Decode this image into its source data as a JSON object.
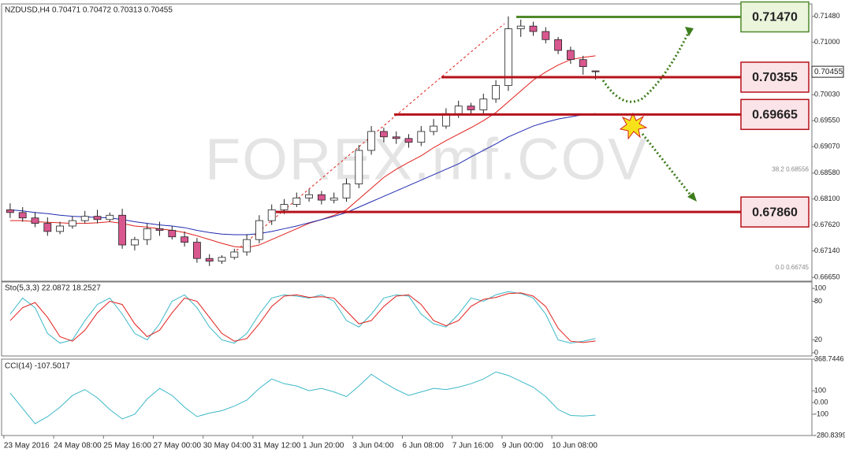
{
  "chart_data": [
    {
      "type": "candlestick",
      "title": "NZDUSD,H4 0.70471 0.70472 0.70313 0.70455",
      "watermark": "FOREX.mf.COV",
      "categories": [
        "23 May 2016",
        null,
        null,
        null,
        "24 May 08:00",
        null,
        null,
        null,
        "25 May 16:00",
        null,
        null,
        null,
        "27 May 00:00",
        null,
        null,
        null,
        "30 May 04:00",
        null,
        null,
        null,
        "31 May 12:00",
        null,
        null,
        null,
        "1 Jun 20:00",
        null,
        null,
        null,
        "3 Jun 04:00",
        null,
        null,
        null,
        "6 Jun 08:00",
        null,
        null,
        null,
        "7 Jun 16:00",
        null,
        null,
        null,
        "9 Jun 00:00",
        null,
        null,
        null,
        "10 Jun 08:00",
        null,
        null,
        null
      ],
      "open": [
        0.679,
        0.6785,
        0.6775,
        0.6765,
        0.675,
        0.676,
        0.677,
        0.6778,
        0.6772,
        0.678,
        0.6725,
        0.6735,
        0.6755,
        0.6752,
        0.674,
        0.673,
        0.67,
        0.6695,
        0.6702,
        0.6712,
        0.6735,
        0.677,
        0.679,
        0.68,
        0.6812,
        0.6818,
        0.6808,
        0.6812,
        0.6838,
        0.69,
        0.6935,
        0.6925,
        0.6922,
        0.6915,
        0.6935,
        0.6945,
        0.6968,
        0.6982,
        0.6975,
        0.6995,
        0.702,
        0.7125,
        0.713,
        0.712,
        0.7105,
        0.7085,
        0.7068,
        0.70471
      ],
      "high": [
        0.6802,
        0.6795,
        0.6786,
        0.6776,
        0.6768,
        0.6778,
        0.6788,
        0.679,
        0.6785,
        0.6792,
        0.674,
        0.6765,
        0.6768,
        0.676,
        0.675,
        0.6738,
        0.6708,
        0.6706,
        0.6718,
        0.6745,
        0.678,
        0.68,
        0.681,
        0.6822,
        0.6828,
        0.6825,
        0.6822,
        0.6848,
        0.691,
        0.6945,
        0.6942,
        0.6935,
        0.693,
        0.6945,
        0.6958,
        0.6978,
        0.6992,
        0.6988,
        0.7005,
        0.703,
        0.7148,
        0.7142,
        0.7138,
        0.7128,
        0.711,
        0.7092,
        0.7075,
        0.70472
      ],
      "low": [
        0.6775,
        0.6768,
        0.6758,
        0.6742,
        0.6745,
        0.6755,
        0.6765,
        0.6765,
        0.6768,
        0.6718,
        0.6715,
        0.6725,
        0.6742,
        0.6735,
        0.6722,
        0.6692,
        0.6686,
        0.669,
        0.6698,
        0.6705,
        0.6728,
        0.6762,
        0.6782,
        0.6795,
        0.6805,
        0.68,
        0.6802,
        0.6805,
        0.683,
        0.6892,
        0.6915,
        0.6912,
        0.6905,
        0.6908,
        0.6928,
        0.694,
        0.696,
        0.6968,
        0.6968,
        0.6988,
        0.701,
        0.711,
        0.7112,
        0.7098,
        0.7078,
        0.706,
        0.704,
        0.70313
      ],
      "close": [
        0.6785,
        0.6775,
        0.6765,
        0.675,
        0.676,
        0.677,
        0.6778,
        0.6772,
        0.678,
        0.6725,
        0.6735,
        0.6755,
        0.6752,
        0.674,
        0.673,
        0.67,
        0.6695,
        0.6702,
        0.6712,
        0.6735,
        0.677,
        0.679,
        0.68,
        0.6812,
        0.6818,
        0.6808,
        0.6812,
        0.6838,
        0.69,
        0.6935,
        0.6925,
        0.6922,
        0.6915,
        0.6935,
        0.6945,
        0.6968,
        0.6982,
        0.6975,
        0.6995,
        0.702,
        0.7125,
        0.713,
        0.712,
        0.7105,
        0.7085,
        0.7068,
        0.7055,
        0.70455
      ],
      "up_color": "#ffffff",
      "down_color": "#d9578f",
      "overlays": [
        {
          "color": "#e0201b",
          "values": [
            0.677,
            0.677,
            0.6768,
            0.6767,
            0.6766,
            0.6765,
            0.6765,
            0.6766,
            0.6768,
            0.6765,
            0.676,
            0.6758,
            0.6755,
            0.6752,
            0.6748,
            0.6742,
            0.6735,
            0.6728,
            0.6722,
            0.672,
            0.6725,
            0.6735,
            0.6745,
            0.6755,
            0.6765,
            0.6772,
            0.678,
            0.679,
            0.681,
            0.683,
            0.685,
            0.6865,
            0.6878,
            0.689,
            0.6905,
            0.6918,
            0.693,
            0.6942,
            0.6955,
            0.697,
            0.699,
            0.701,
            0.703,
            0.7045,
            0.7058,
            0.7068,
            0.7072,
            0.7075
          ]
        },
        {
          "color": "#1f2bb0",
          "values": [
            0.679,
            0.6788,
            0.6785,
            0.6783,
            0.678,
            0.6778,
            0.6777,
            0.6776,
            0.6775,
            0.6772,
            0.6768,
            0.6765,
            0.6762,
            0.676,
            0.6757,
            0.6752,
            0.6748,
            0.6745,
            0.6744,
            0.6744,
            0.6746,
            0.675,
            0.6755,
            0.676,
            0.6766,
            0.6772,
            0.6778,
            0.6785,
            0.6795,
            0.6805,
            0.6815,
            0.6825,
            0.6835,
            0.6845,
            0.6855,
            0.6865,
            0.6875,
            0.6888,
            0.69,
            0.6912,
            0.6925,
            0.6935,
            0.6945,
            0.6952,
            0.6958,
            0.6962,
            0.6966,
            0.6968
          ]
        }
      ],
      "ylim": [
        0.6658,
        0.7171
      ],
      "yticks": [
        {
          "value": 0.6665,
          "label": "0.66650"
        },
        {
          "value": 0.6714,
          "label": "0.67140"
        },
        {
          "value": 0.6762,
          "label": "0.67620"
        },
        {
          "value": 0.681,
          "label": "0.68100"
        },
        {
          "value": 0.6858,
          "label": "0.68580"
        },
        {
          "value": 0.6907,
          "label": "0.69070"
        },
        {
          "value": 0.6955,
          "label": "0.69550"
        },
        {
          "value": 0.7003,
          "label": "0.70030"
        },
        {
          "value": 0.71,
          "label": "0.71000"
        },
        {
          "value": 0.7148,
          "label": "0.71480"
        }
      ],
      "last": {
        "value": 0.70455,
        "label": "0.70455"
      },
      "levels": [
        {
          "value": 0.7147,
          "label": "0.71470",
          "color": "#4f8a2a"
        },
        {
          "value": 0.70355,
          "label": "0.70355",
          "color": "#b5121b"
        },
        {
          "value": 0.69665,
          "label": "0.69665",
          "color": "#b5121b"
        },
        {
          "value": 0.6786,
          "label": "0.67860",
          "color": "#b5121b"
        }
      ],
      "fib_labels": [
        {
          "value": 0.68556,
          "label": "38.2 0.68556"
        },
        {
          "value": 0.66745,
          "label": "0.0 0.66745"
        }
      ]
    },
    {
      "type": "line",
      "title": "Sto(5,3,3) 22.0872 18.2527",
      "ylim": [
        -5,
        110
      ],
      "yticks": [
        0,
        20,
        80,
        100
      ],
      "series": [
        {
          "color": "#3cb8c8",
          "values": [
            60,
            85,
            70,
            30,
            15,
            20,
            50,
            75,
            85,
            60,
            30,
            20,
            45,
            80,
            90,
            70,
            40,
            20,
            15,
            30,
            60,
            85,
            90,
            88,
            85,
            90,
            80,
            50,
            40,
            60,
            85,
            90,
            88,
            60,
            45,
            40,
            60,
            85,
            80,
            90,
            95,
            92,
            85,
            60,
            20,
            15,
            18,
            22.0872
          ]
        },
        {
          "color": "#e0201b",
          "values": [
            50,
            70,
            78,
            55,
            25,
            18,
            35,
            62,
            80,
            75,
            45,
            25,
            35,
            62,
            85,
            80,
            55,
            30,
            18,
            22,
            45,
            72,
            88,
            90,
            86,
            87,
            85,
            65,
            45,
            50,
            72,
            88,
            90,
            75,
            50,
            42,
            50,
            72,
            83,
            86,
            92,
            93,
            88,
            72,
            38,
            18,
            16,
            18.2527
          ]
        }
      ]
    },
    {
      "type": "line",
      "title": "CCI(14) -107.5017",
      "ylim": [
        -280.8399,
        368.7446
      ],
      "yticks": [
        -280.8399,
        -100,
        {
          "value": 0,
          "label": "0.00"
        },
        100,
        368.7446
      ],
      "series": [
        {
          "color": "#3cb8c8",
          "values": [
            80,
            -50,
            -180,
            -120,
            -40,
            60,
            110,
            40,
            -60,
            -140,
            -100,
            30,
            120,
            60,
            -40,
            -120,
            -90,
            -70,
            -30,
            20,
            120,
            200,
            160,
            140,
            100,
            120,
            90,
            50,
            140,
            240,
            170,
            110,
            60,
            90,
            120,
            110,
            130,
            160,
            200,
            260,
            230,
            180,
            130,
            50,
            -60,
            -110,
            -115,
            -107.5017
          ]
        }
      ]
    }
  ]
}
